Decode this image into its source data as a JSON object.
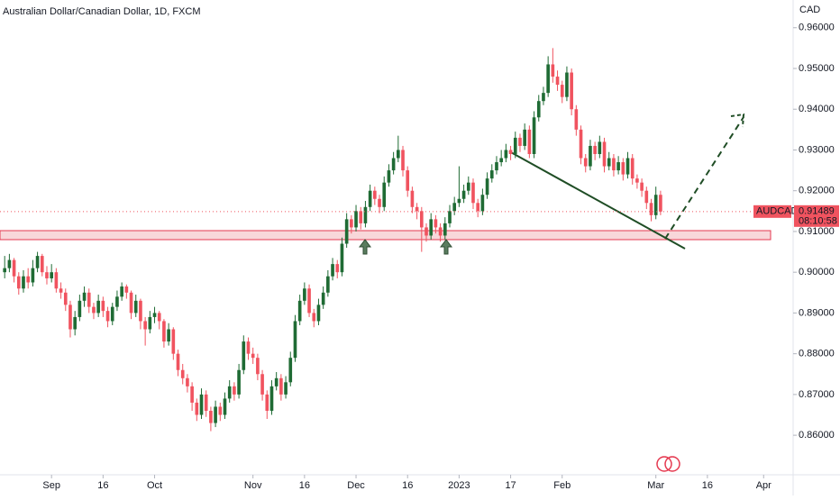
{
  "chart_data": {
    "type": "candlestick",
    "title": "Australian Dollar/Canadian Dollar, 1D, FXCM",
    "y_axis_label": "CAD",
    "symbol": "AUDCAD",
    "last_price": 0.91489,
    "countdown": "08:10:58",
    "up_color": "#1f6b34",
    "down_color": "#f0535f",
    "xlim": [
      -1,
      168.3
    ],
    "xticks": [
      {
        "value": 10,
        "label": "Sep"
      },
      {
        "value": 21,
        "label": "16"
      },
      {
        "value": 32,
        "label": "Oct"
      },
      {
        "value": 53,
        "label": "Nov"
      },
      {
        "value": 64,
        "label": "16"
      },
      {
        "value": 75,
        "label": "Dec"
      },
      {
        "value": 86,
        "label": "16"
      },
      {
        "value": 97,
        "label": "2023"
      },
      {
        "value": 108,
        "label": "17"
      },
      {
        "value": 119,
        "label": "Feb"
      },
      {
        "value": 139,
        "label": "Mar"
      },
      {
        "value": 150,
        "label": "16"
      },
      {
        "value": 162,
        "label": "Apr"
      }
    ],
    "ylim": [
      0.8503,
      0.9668
    ],
    "yticks": [
      {
        "value": 0.96,
        "label": "0.96000"
      },
      {
        "value": 0.95,
        "label": "0.95000"
      },
      {
        "value": 0.94,
        "label": "0.94000"
      },
      {
        "value": 0.93,
        "label": "0.93000"
      },
      {
        "value": 0.92,
        "label": "0.92000"
      },
      {
        "value": 0.91,
        "label": "0.91000"
      },
      {
        "value": 0.9,
        "label": "0.90000"
      },
      {
        "value": 0.89,
        "label": "0.89000"
      },
      {
        "value": 0.88,
        "label": "0.88000"
      },
      {
        "value": 0.87,
        "label": "0.87000"
      },
      {
        "value": 0.86,
        "label": "0.86000"
      }
    ],
    "ohlc": [
      [
        0.9,
        0.904,
        0.8985,
        0.901
      ],
      [
        0.901,
        0.9045,
        0.9,
        0.903
      ],
      [
        0.903,
        0.9035,
        0.8975,
        0.899
      ],
      [
        0.899,
        0.9,
        0.8945,
        0.896
      ],
      [
        0.896,
        0.9005,
        0.895,
        0.899
      ],
      [
        0.899,
        0.901,
        0.896,
        0.8975
      ],
      [
        0.8975,
        0.903,
        0.8965,
        0.901
      ],
      [
        0.901,
        0.905,
        0.9,
        0.904
      ],
      [
        0.904,
        0.9045,
        0.899,
        0.9
      ],
      [
        0.9,
        0.9015,
        0.897,
        0.8985
      ],
      [
        0.8985,
        0.902,
        0.8975,
        0.9
      ],
      [
        0.9,
        0.901,
        0.895,
        0.896
      ],
      [
        0.896,
        0.8975,
        0.8935,
        0.895
      ],
      [
        0.895,
        0.896,
        0.8905,
        0.892
      ],
      [
        0.892,
        0.893,
        0.884,
        0.886
      ],
      [
        0.886,
        0.8905,
        0.8845,
        0.889
      ],
      [
        0.889,
        0.8945,
        0.888,
        0.893
      ],
      [
        0.893,
        0.8965,
        0.8915,
        0.895
      ],
      [
        0.895,
        0.896,
        0.89,
        0.8915
      ],
      [
        0.8915,
        0.8925,
        0.8885,
        0.89
      ],
      [
        0.89,
        0.8945,
        0.889,
        0.893
      ],
      [
        0.893,
        0.894,
        0.889,
        0.8905
      ],
      [
        0.8905,
        0.8915,
        0.8865,
        0.888
      ],
      [
        0.888,
        0.8925,
        0.887,
        0.8915
      ],
      [
        0.8915,
        0.8955,
        0.8905,
        0.894
      ],
      [
        0.894,
        0.8975,
        0.893,
        0.8965
      ],
      [
        0.8965,
        0.897,
        0.8935,
        0.895
      ],
      [
        0.895,
        0.8955,
        0.8885,
        0.89
      ],
      [
        0.89,
        0.8945,
        0.889,
        0.893
      ],
      [
        0.893,
        0.8935,
        0.886,
        0.888
      ],
      [
        0.888,
        0.889,
        0.882,
        0.886
      ],
      [
        0.886,
        0.8905,
        0.885,
        0.889
      ],
      [
        0.889,
        0.8915,
        0.8875,
        0.89
      ],
      [
        0.89,
        0.8905,
        0.886,
        0.888
      ],
      [
        0.888,
        0.8885,
        0.8815,
        0.883
      ],
      [
        0.883,
        0.8875,
        0.882,
        0.886
      ],
      [
        0.886,
        0.8865,
        0.8785,
        0.88
      ],
      [
        0.88,
        0.881,
        0.8745,
        0.876
      ],
      [
        0.876,
        0.8775,
        0.8725,
        0.874
      ],
      [
        0.874,
        0.875,
        0.8705,
        0.872
      ],
      [
        0.872,
        0.873,
        0.866,
        0.868
      ],
      [
        0.868,
        0.869,
        0.8635,
        0.865
      ],
      [
        0.865,
        0.8715,
        0.864,
        0.87
      ],
      [
        0.87,
        0.871,
        0.8645,
        0.866
      ],
      [
        0.866,
        0.867,
        0.861,
        0.863
      ],
      [
        0.863,
        0.8685,
        0.862,
        0.867
      ],
      [
        0.867,
        0.868,
        0.8635,
        0.865
      ],
      [
        0.865,
        0.8705,
        0.864,
        0.869
      ],
      [
        0.869,
        0.8735,
        0.868,
        0.872
      ],
      [
        0.872,
        0.873,
        0.8685,
        0.87
      ],
      [
        0.87,
        0.8775,
        0.869,
        0.876
      ],
      [
        0.876,
        0.8845,
        0.875,
        0.883
      ],
      [
        0.883,
        0.884,
        0.8785,
        0.88
      ],
      [
        0.88,
        0.8815,
        0.8775,
        0.879
      ],
      [
        0.879,
        0.88,
        0.8735,
        0.875
      ],
      [
        0.875,
        0.876,
        0.8685,
        0.87
      ],
      [
        0.87,
        0.871,
        0.864,
        0.866
      ],
      [
        0.866,
        0.8735,
        0.865,
        0.872
      ],
      [
        0.872,
        0.8755,
        0.871,
        0.874
      ],
      [
        0.874,
        0.875,
        0.8685,
        0.87
      ],
      [
        0.87,
        0.8745,
        0.869,
        0.873
      ],
      [
        0.873,
        0.8805,
        0.872,
        0.879
      ],
      [
        0.879,
        0.8895,
        0.878,
        0.888
      ],
      [
        0.888,
        0.8945,
        0.887,
        0.893
      ],
      [
        0.893,
        0.8975,
        0.892,
        0.896
      ],
      [
        0.896,
        0.897,
        0.889,
        0.89
      ],
      [
        0.89,
        0.891,
        0.8865,
        0.888
      ],
      [
        0.888,
        0.8935,
        0.887,
        0.892
      ],
      [
        0.892,
        0.8965,
        0.891,
        0.895
      ],
      [
        0.895,
        0.9005,
        0.894,
        0.899
      ],
      [
        0.899,
        0.9035,
        0.898,
        0.902
      ],
      [
        0.902,
        0.903,
        0.8985,
        0.9
      ],
      [
        0.9,
        0.9085,
        0.899,
        0.907
      ],
      [
        0.907,
        0.9145,
        0.906,
        0.913
      ],
      [
        0.913,
        0.914,
        0.9095,
        0.911
      ],
      [
        0.911,
        0.9165,
        0.91,
        0.915
      ],
      [
        0.915,
        0.916,
        0.9105,
        0.912
      ],
      [
        0.912,
        0.9175,
        0.911,
        0.916
      ],
      [
        0.916,
        0.9215,
        0.915,
        0.92
      ],
      [
        0.92,
        0.921,
        0.9165,
        0.918
      ],
      [
        0.918,
        0.919,
        0.9145,
        0.916
      ],
      [
        0.916,
        0.9235,
        0.915,
        0.922
      ],
      [
        0.922,
        0.9265,
        0.921,
        0.925
      ],
      [
        0.925,
        0.9295,
        0.924,
        0.928
      ],
      [
        0.928,
        0.9335,
        0.927,
        0.93
      ],
      [
        0.93,
        0.931,
        0.9235,
        0.925
      ],
      [
        0.925,
        0.926,
        0.9185,
        0.92
      ],
      [
        0.92,
        0.921,
        0.9145,
        0.916
      ],
      [
        0.916,
        0.917,
        0.913,
        0.915
      ],
      [
        0.915,
        0.916,
        0.905,
        0.911
      ],
      [
        0.911,
        0.912,
        0.9075,
        0.909
      ],
      [
        0.909,
        0.9145,
        0.908,
        0.913
      ],
      [
        0.913,
        0.914,
        0.9095,
        0.911
      ],
      [
        0.911,
        0.912,
        0.9075,
        0.909
      ],
      [
        0.909,
        0.9135,
        0.908,
        0.912
      ],
      [
        0.912,
        0.9165,
        0.911,
        0.915
      ],
      [
        0.915,
        0.9185,
        0.914,
        0.917
      ],
      [
        0.917,
        0.926,
        0.916,
        0.918
      ],
      [
        0.918,
        0.9215,
        0.917,
        0.92
      ],
      [
        0.92,
        0.9235,
        0.919,
        0.922
      ],
      [
        0.922,
        0.923,
        0.9155,
        0.917
      ],
      [
        0.917,
        0.918,
        0.9135,
        0.915
      ],
      [
        0.915,
        0.9205,
        0.914,
        0.919
      ],
      [
        0.919,
        0.9245,
        0.918,
        0.923
      ],
      [
        0.923,
        0.9265,
        0.922,
        0.925
      ],
      [
        0.925,
        0.9285,
        0.924,
        0.927
      ],
      [
        0.927,
        0.93,
        0.926,
        0.928
      ],
      [
        0.928,
        0.9315,
        0.927,
        0.93
      ],
      [
        0.93,
        0.931,
        0.9275,
        0.929
      ],
      [
        0.929,
        0.9345,
        0.928,
        0.933
      ],
      [
        0.933,
        0.934,
        0.9295,
        0.931
      ],
      [
        0.931,
        0.9365,
        0.93,
        0.935
      ],
      [
        0.935,
        0.936,
        0.928,
        0.929
      ],
      [
        0.929,
        0.9395,
        0.928,
        0.938
      ],
      [
        0.938,
        0.9435,
        0.937,
        0.942
      ],
      [
        0.942,
        0.9455,
        0.941,
        0.944
      ],
      [
        0.944,
        0.953,
        0.943,
        0.951
      ],
      [
        0.951,
        0.955,
        0.9465,
        0.948
      ],
      [
        0.948,
        0.9495,
        0.9445,
        0.946
      ],
      [
        0.946,
        0.947,
        0.9415,
        0.943
      ],
      [
        0.943,
        0.9505,
        0.942,
        0.949
      ],
      [
        0.949,
        0.95,
        0.9385,
        0.94
      ],
      [
        0.94,
        0.941,
        0.9335,
        0.935
      ],
      [
        0.935,
        0.936,
        0.9265,
        0.928
      ],
      [
        0.928,
        0.929,
        0.9245,
        0.926
      ],
      [
        0.926,
        0.9325,
        0.925,
        0.931
      ],
      [
        0.931,
        0.932,
        0.9275,
        0.929
      ],
      [
        0.929,
        0.9335,
        0.928,
        0.932
      ],
      [
        0.932,
        0.933,
        0.9245,
        0.926
      ],
      [
        0.926,
        0.9295,
        0.925,
        0.928
      ],
      [
        0.928,
        0.929,
        0.9235,
        0.925
      ],
      [
        0.925,
        0.9285,
        0.924,
        0.927
      ],
      [
        0.927,
        0.928,
        0.9225,
        0.924
      ],
      [
        0.924,
        0.9295,
        0.923,
        0.928
      ],
      [
        0.928,
        0.929,
        0.9215,
        0.923
      ],
      [
        0.923,
        0.924,
        0.9205,
        0.922
      ],
      [
        0.922,
        0.923,
        0.9185,
        0.92
      ],
      [
        0.92,
        0.921,
        0.9155,
        0.917
      ],
      [
        0.917,
        0.918,
        0.9125,
        0.914
      ],
      [
        0.914,
        0.921,
        0.913,
        0.919
      ],
      [
        0.919,
        0.92,
        0.914,
        0.91489
      ]
    ]
  }
}
